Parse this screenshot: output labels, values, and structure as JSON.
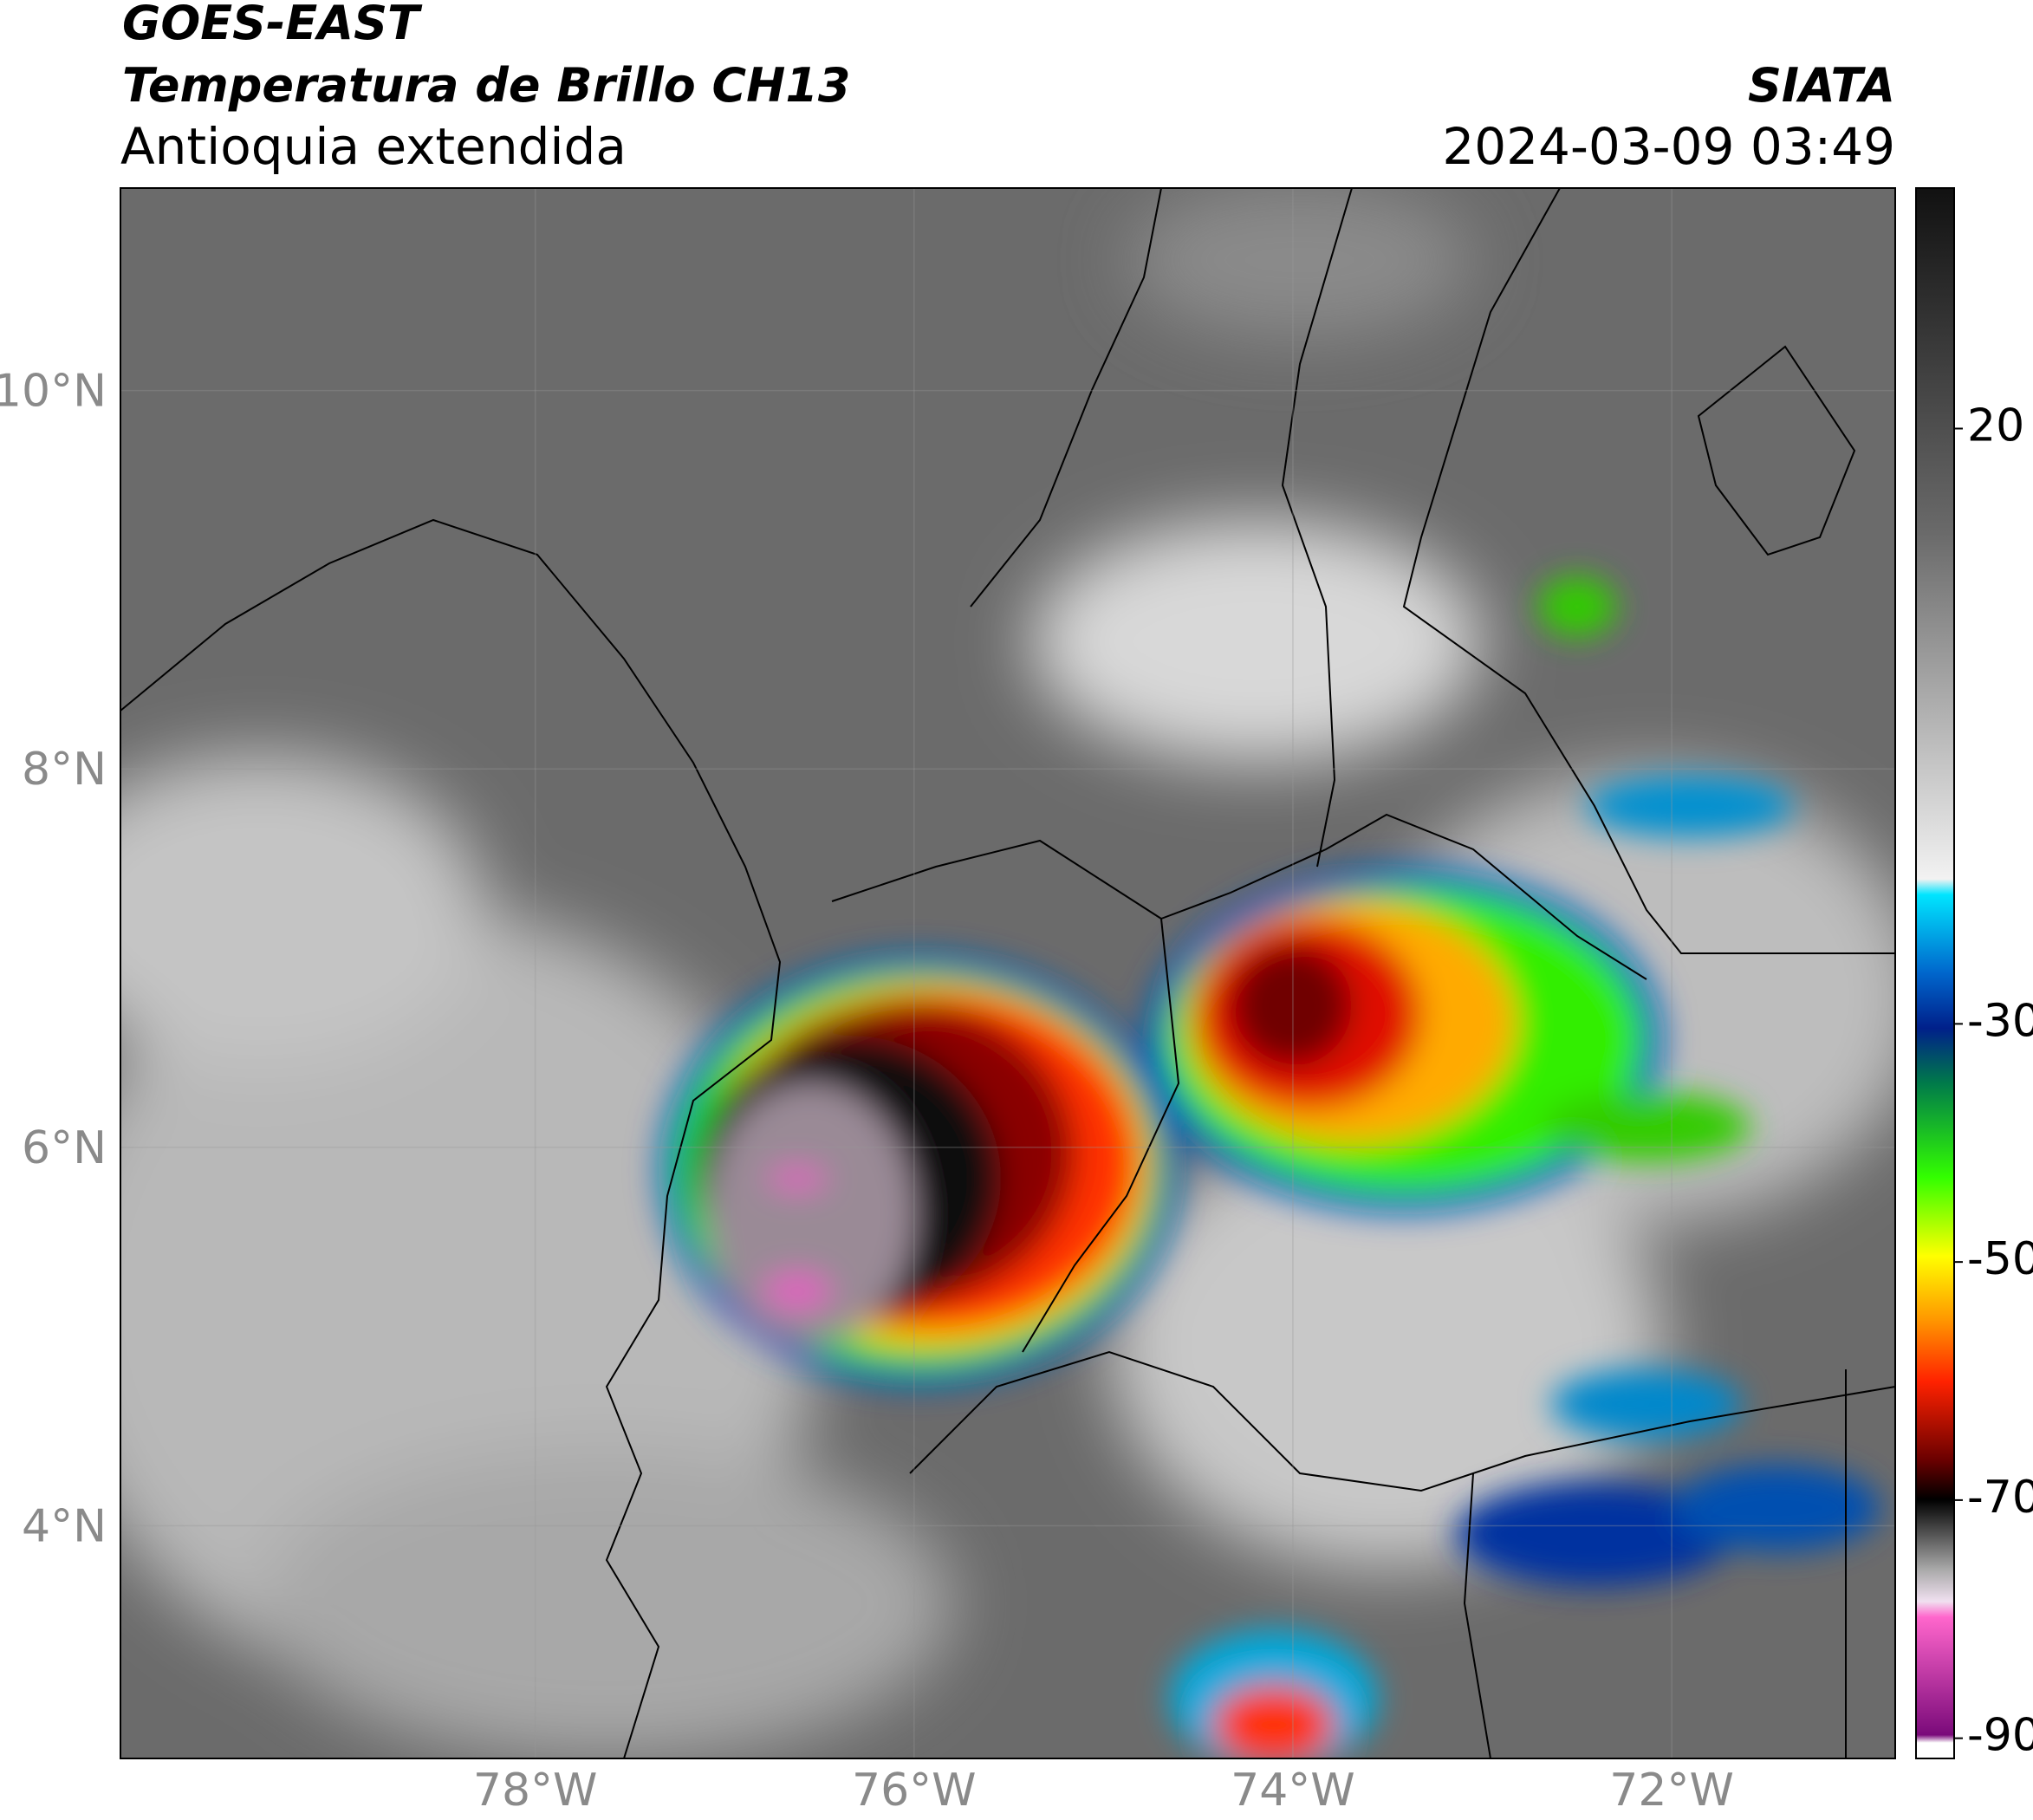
{
  "header": {
    "satellite": "GOES-EAST",
    "product": "Temperatura de Brillo CH13",
    "region": "Antioquia extendida",
    "source": "SIATA",
    "datetime": "2024-03-09 03:49"
  },
  "map": {
    "lon_range": [
      -80.19,
      -70.82
    ],
    "lat_range": [
      2.77,
      11.07
    ],
    "lon_ticks": [
      {
        "value": -78,
        "label": "78°W"
      },
      {
        "value": -76,
        "label": "76°W"
      },
      {
        "value": -74,
        "label": "74°W"
      },
      {
        "value": -72,
        "label": "72°W"
      }
    ],
    "lat_ticks": [
      {
        "value": 10,
        "label": "10°N"
      },
      {
        "value": 8,
        "label": "8°N"
      },
      {
        "value": 6,
        "label": "6°N"
      },
      {
        "value": 4,
        "label": "4°N"
      }
    ]
  },
  "colorbar": {
    "range": [
      -91.7,
      40.2
    ],
    "ticks": [
      20,
      -30,
      -50,
      -70,
      -90
    ]
  }
}
